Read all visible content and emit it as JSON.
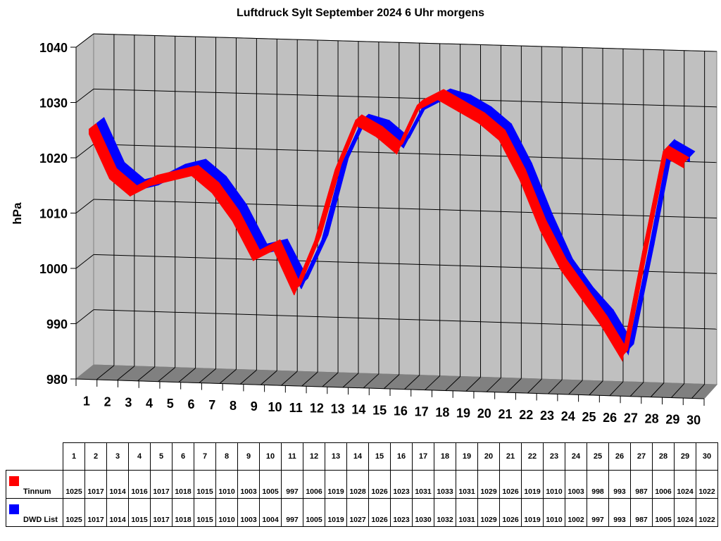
{
  "chart_data": {
    "type": "line",
    "title": "Luftdruck Sylt September 2024 6 Uhr morgens",
    "xlabel": "",
    "ylabel": "hPa",
    "ylim": [
      980,
      1040
    ],
    "yticks": [
      980,
      990,
      1000,
      1010,
      1020,
      1030,
      1040
    ],
    "grid": true,
    "style": "3d-line",
    "legend_position": "data-table",
    "categories": [
      "1",
      "2",
      "3",
      "4",
      "5",
      "6",
      "7",
      "8",
      "9",
      "10",
      "11",
      "12",
      "13",
      "14",
      "15",
      "16",
      "17",
      "18",
      "19",
      "20",
      "21",
      "22",
      "23",
      "24",
      "25",
      "26",
      "27",
      "28",
      "29",
      "30"
    ],
    "series": [
      {
        "name": "Tinnum",
        "color": "#ff0000",
        "values": [
          1025,
          1017,
          1014,
          1016,
          1017,
          1018,
          1015,
          1010,
          1003,
          1005,
          997,
          1006,
          1019,
          1028,
          1026,
          1023,
          1031,
          1033,
          1031,
          1029,
          1026,
          1019,
          1010,
          1003,
          998,
          993,
          987,
          1006,
          1024,
          1022
        ]
      },
      {
        "name": "DWD List",
        "color": "#0000ff",
        "values": [
          1025,
          1017,
          1014,
          1015,
          1017,
          1018,
          1015,
          1010,
          1003,
          1004,
          997,
          1005,
          1019,
          1027,
          1026,
          1023,
          1030,
          1032,
          1031,
          1029,
          1026,
          1019,
          1010,
          1002,
          997,
          993,
          987,
          1005,
          1024,
          1022
        ]
      }
    ]
  },
  "colors": {
    "wall": "#c0c0c0",
    "floor": "#808080",
    "gridline": "#000000"
  }
}
